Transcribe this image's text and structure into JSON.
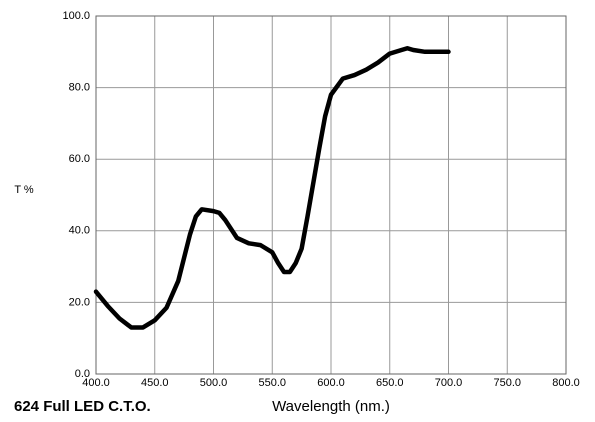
{
  "chart_data": {
    "type": "line",
    "title": "624 Full LED C.T.O.",
    "x_label": "Wavelength (nm.)",
    "y_label": "T %",
    "grid": true,
    "xlim": [
      400,
      800
    ],
    "xticks": [
      {
        "value": 400,
        "label": "400.0"
      },
      {
        "value": 450,
        "label": "450.0"
      },
      {
        "value": 500,
        "label": "500.0"
      },
      {
        "value": 550,
        "label": "550.0"
      },
      {
        "value": 600,
        "label": "600.0"
      },
      {
        "value": 650,
        "label": "650.0"
      },
      {
        "value": 700,
        "label": "700.0"
      },
      {
        "value": 750,
        "label": "750.0"
      },
      {
        "value": 800,
        "label": "800.0"
      }
    ],
    "ylim": [
      0,
      100
    ],
    "yticks": [
      {
        "value": 0,
        "label": "0.0"
      },
      {
        "value": 20,
        "label": "20.0"
      },
      {
        "value": 40,
        "label": "40.0"
      },
      {
        "value": 60,
        "label": "60.0"
      },
      {
        "value": 80,
        "label": "80.0"
      },
      {
        "value": 100,
        "label": "100.0"
      }
    ],
    "x": [
      400,
      410,
      420,
      430,
      440,
      450,
      460,
      470,
      480,
      485,
      490,
      500,
      505,
      510,
      520,
      530,
      540,
      550,
      555,
      560,
      565,
      570,
      575,
      580,
      590,
      595,
      600,
      610,
      620,
      630,
      640,
      650,
      660,
      665,
      670,
      680,
      690,
      700
    ],
    "series": [
      {
        "color": "#000000",
        "values": [
          23,
          19,
          15.5,
          13,
          13,
          15,
          18.5,
          26,
          39,
          44,
          46,
          45.5,
          45,
          43,
          38,
          36.5,
          36,
          34,
          31,
          28.5,
          28.5,
          31,
          35,
          44,
          63,
          72,
          78,
          82.5,
          83.5,
          85,
          87,
          89.5,
          90.5,
          91,
          90.5,
          90,
          90,
          90
        ]
      }
    ]
  }
}
